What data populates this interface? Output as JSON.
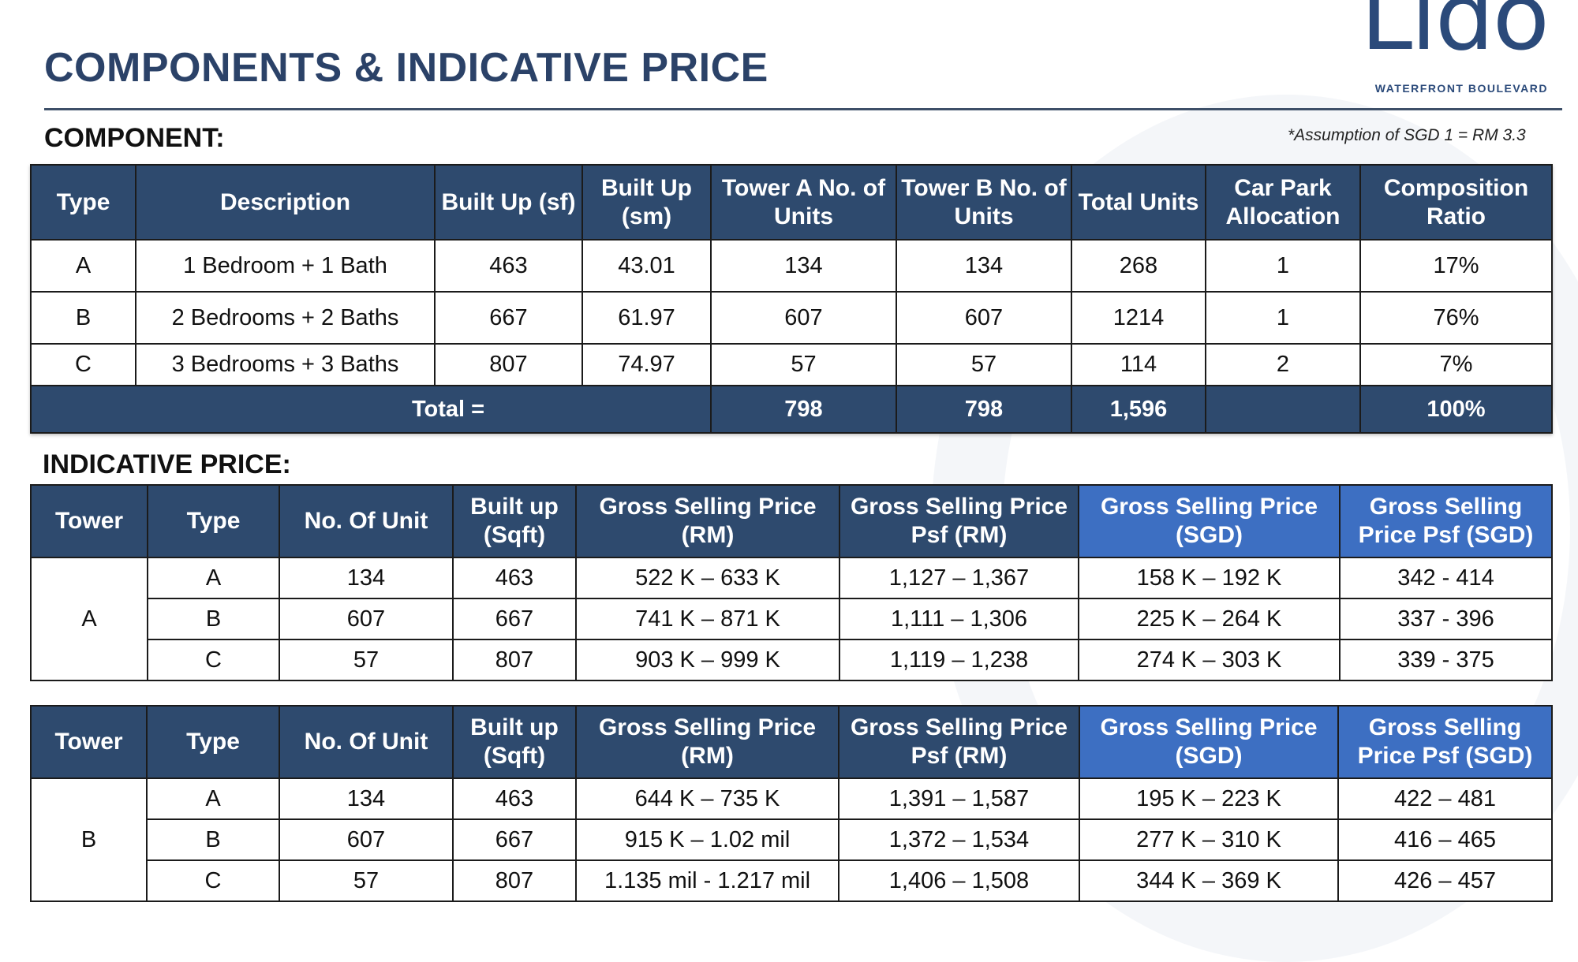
{
  "header": {
    "title": "COMPONENTS & INDICATIVE PRICE",
    "logo_word": "Lido",
    "logo_sub": "WATERFRONT BOULEVARD",
    "brand_color": "#2b4a7a",
    "header_color": "#2e4a6e",
    "sgd_header_color": "#3d6fc2"
  },
  "component": {
    "label": "COMPONENT:",
    "note": "*Assumption of SGD 1 = RM 3.3",
    "headers": {
      "type": "Type",
      "description": "Description",
      "built_up_sf": "Built Up (sf)",
      "built_up_sm": "Built Up (sm)",
      "tower_a": "Tower A No. of Units",
      "tower_b": "Tower B No. of Units",
      "total": "Total Units",
      "car_park": "Car Park Allocation",
      "ratio": "Composition Ratio"
    },
    "rows": [
      {
        "type": "A",
        "description": "1 Bedroom + 1 Bath",
        "sf": "463",
        "sm": "43.01",
        "tower_a": "134",
        "tower_b": "134",
        "total": "268",
        "car_park": "1",
        "ratio": "17%"
      },
      {
        "type": "B",
        "description": "2 Bedrooms + 2 Baths",
        "sf": "667",
        "sm": "61.97",
        "tower_a": "607",
        "tower_b": "607",
        "total": "1214",
        "car_park": "1",
        "ratio": "76%"
      },
      {
        "type": "C",
        "description": "3 Bedrooms + 3 Baths",
        "sf": "807",
        "sm": "74.97",
        "tower_a": "57",
        "tower_b": "57",
        "total": "114",
        "car_park": "2",
        "ratio": "7%"
      }
    ],
    "totals": {
      "label": "Total =",
      "tower_a": "798",
      "tower_b": "798",
      "total": "1,596",
      "ratio": "100%"
    }
  },
  "price": {
    "label": "INDICATIVE PRICE:",
    "headers": {
      "tower": "Tower",
      "type": "Type",
      "units": "No. Of Unit",
      "built_up": "Built up (Sqft)",
      "gsp_rm": "Gross Selling Price (RM)",
      "gsp_psf_rm": "Gross Selling Price Psf (RM)",
      "gsp_sgd": "Gross Selling Price (SGD)",
      "gsp_psf_sgd": "Gross Selling Price Psf (SGD)"
    },
    "towers": [
      {
        "tower": "A",
        "rows": [
          {
            "type": "A",
            "units": "134",
            "built_up": "463",
            "gsp_rm": "522 K – 633 K",
            "psf_rm": "1,127 – 1,367",
            "gsp_sgd": "158 K – 192 K",
            "psf_sgd": "342 - 414"
          },
          {
            "type": "B",
            "units": "607",
            "built_up": "667",
            "gsp_rm": "741 K – 871 K",
            "psf_rm": "1,111 – 1,306",
            "gsp_sgd": "225 K – 264 K",
            "psf_sgd": "337 - 396"
          },
          {
            "type": "C",
            "units": "57",
            "built_up": "807",
            "gsp_rm": "903 K – 999 K",
            "psf_rm": "1,119 – 1,238",
            "gsp_sgd": "274 K – 303 K",
            "psf_sgd": "339 - 375"
          }
        ]
      },
      {
        "tower": "B",
        "rows": [
          {
            "type": "A",
            "units": "134",
            "built_up": "463",
            "gsp_rm": "644 K – 735 K",
            "psf_rm": "1,391 – 1,587",
            "gsp_sgd": "195 K – 223 K",
            "psf_sgd": "422 – 481"
          },
          {
            "type": "B",
            "units": "607",
            "built_up": "667",
            "gsp_rm": "915 K – 1.02 mil",
            "psf_rm": "1,372 – 1,534",
            "gsp_sgd": "277 K – 310 K",
            "psf_sgd": "416 – 465"
          },
          {
            "type": "C",
            "units": "57",
            "built_up": "807",
            "gsp_rm": "1.135 mil - 1.217 mil",
            "psf_rm": "1,406 – 1,508",
            "gsp_sgd": "344 K – 369 K",
            "psf_sgd": "426 – 457"
          }
        ]
      }
    ]
  }
}
